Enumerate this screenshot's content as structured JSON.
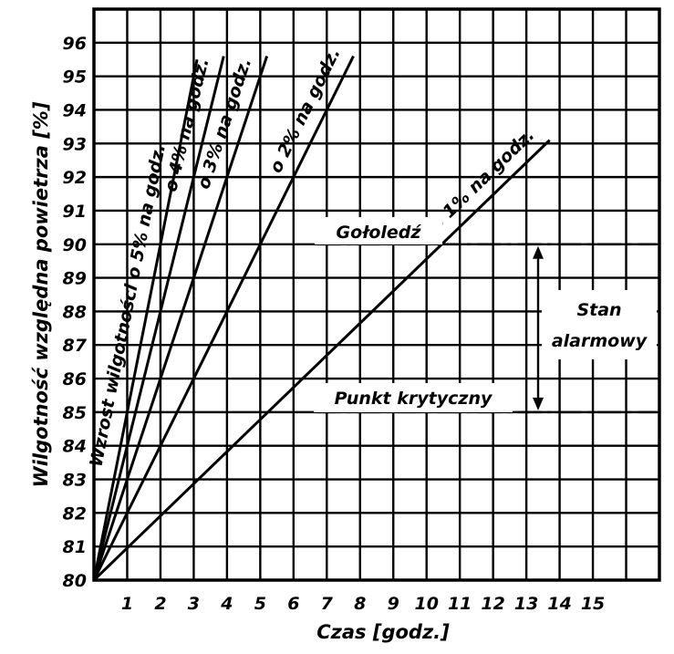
{
  "chart_data": {
    "type": "line",
    "xlabel": "Czas [godz.]",
    "ylabel": "Wilgotność względna powietrza [%]",
    "xlim": [
      0,
      17
    ],
    "ylim": [
      80,
      97
    ],
    "x_ticks": [
      "1",
      "2",
      "3",
      "4",
      "5",
      "6",
      "7",
      "8",
      "9",
      "10",
      "11",
      "12",
      "13",
      "14",
      "15"
    ],
    "y_ticks": [
      "80",
      "81",
      "82",
      "83",
      "84",
      "85",
      "86",
      "87",
      "88",
      "89",
      "90",
      "91",
      "92",
      "93",
      "94",
      "95",
      "96"
    ],
    "grid": true,
    "legend": "none",
    "series": [
      {
        "name": "Wzrost wilgotności o 5% na godz.",
        "x": [
          0,
          3.1
        ],
        "y": [
          80,
          95.5
        ]
      },
      {
        "name": "o 4% na godz.",
        "x": [
          0,
          3.9
        ],
        "y": [
          80,
          95.6
        ]
      },
      {
        "name": "o 3% na godz.",
        "x": [
          0,
          5.2
        ],
        "y": [
          80,
          95.6
        ]
      },
      {
        "name": "o 2% na godz.",
        "x": [
          0,
          7.8
        ],
        "y": [
          80,
          95.6
        ]
      },
      {
        "name": "o 1% na godz.",
        "x": [
          0,
          13.7
        ],
        "y": [
          80,
          93.1
        ]
      }
    ],
    "reference_lines": [
      {
        "label": "Gołoledź",
        "y": 90
      },
      {
        "label": "Punkt krytyczny",
        "y": 85
      }
    ],
    "annotations": [
      {
        "text": "Stan alarmowy",
        "lines": [
          "Stan",
          "alarmowy"
        ],
        "y_range": [
          85,
          90
        ]
      }
    ]
  }
}
